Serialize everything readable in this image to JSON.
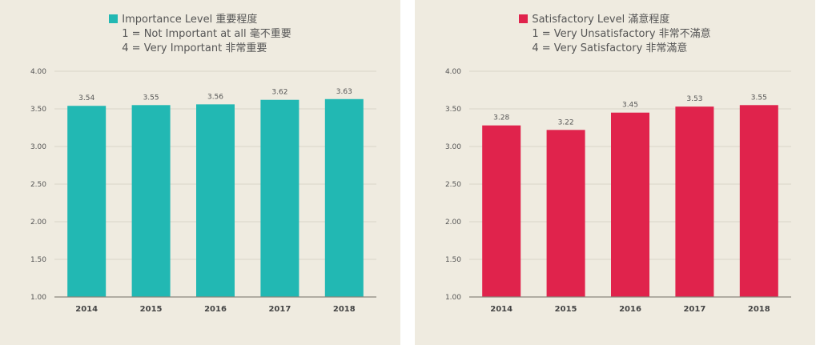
{
  "chart_data": [
    {
      "type": "bar",
      "categories": [
        "2014",
        "2015",
        "2016",
        "2017",
        "2018"
      ],
      "series": [
        {
          "name": "Importance Level 重要程度",
          "values": [
            3.54,
            3.55,
            3.56,
            3.62,
            3.63
          ],
          "color": "#22b8b3"
        }
      ],
      "legend_lines": [
        "1 = Not Important at all 毫不重要",
        "4 = Very Important 非常重要"
      ],
      "ylim": [
        1.0,
        4.0
      ],
      "yticks": [
        "1.00",
        "1.50",
        "2.00",
        "2.50",
        "3.00",
        "3.50",
        "4.00"
      ],
      "data_labels": [
        "3.54",
        "3.55",
        "3.56",
        "3.62",
        "3.63"
      ],
      "grid": true,
      "legend_position": "top"
    },
    {
      "type": "bar",
      "categories": [
        "2014",
        "2015",
        "2016",
        "2017",
        "2018"
      ],
      "series": [
        {
          "name": "Satisfactory Level 滿意程度",
          "values": [
            3.28,
            3.22,
            3.45,
            3.53,
            3.55
          ],
          "color": "#e0234c"
        }
      ],
      "legend_lines": [
        "1 = Very Unsatisfactory 非常不滿意",
        "4 = Very Satisfactory 非常滿意"
      ],
      "ylim": [
        1.0,
        4.0
      ],
      "yticks": [
        "1.00",
        "1.50",
        "2.00",
        "2.50",
        "3.00",
        "3.50",
        "4.00"
      ],
      "data_labels": [
        "3.28",
        "3.22",
        "3.45",
        "3.53",
        "3.55"
      ],
      "grid": true,
      "legend_position": "top"
    }
  ]
}
